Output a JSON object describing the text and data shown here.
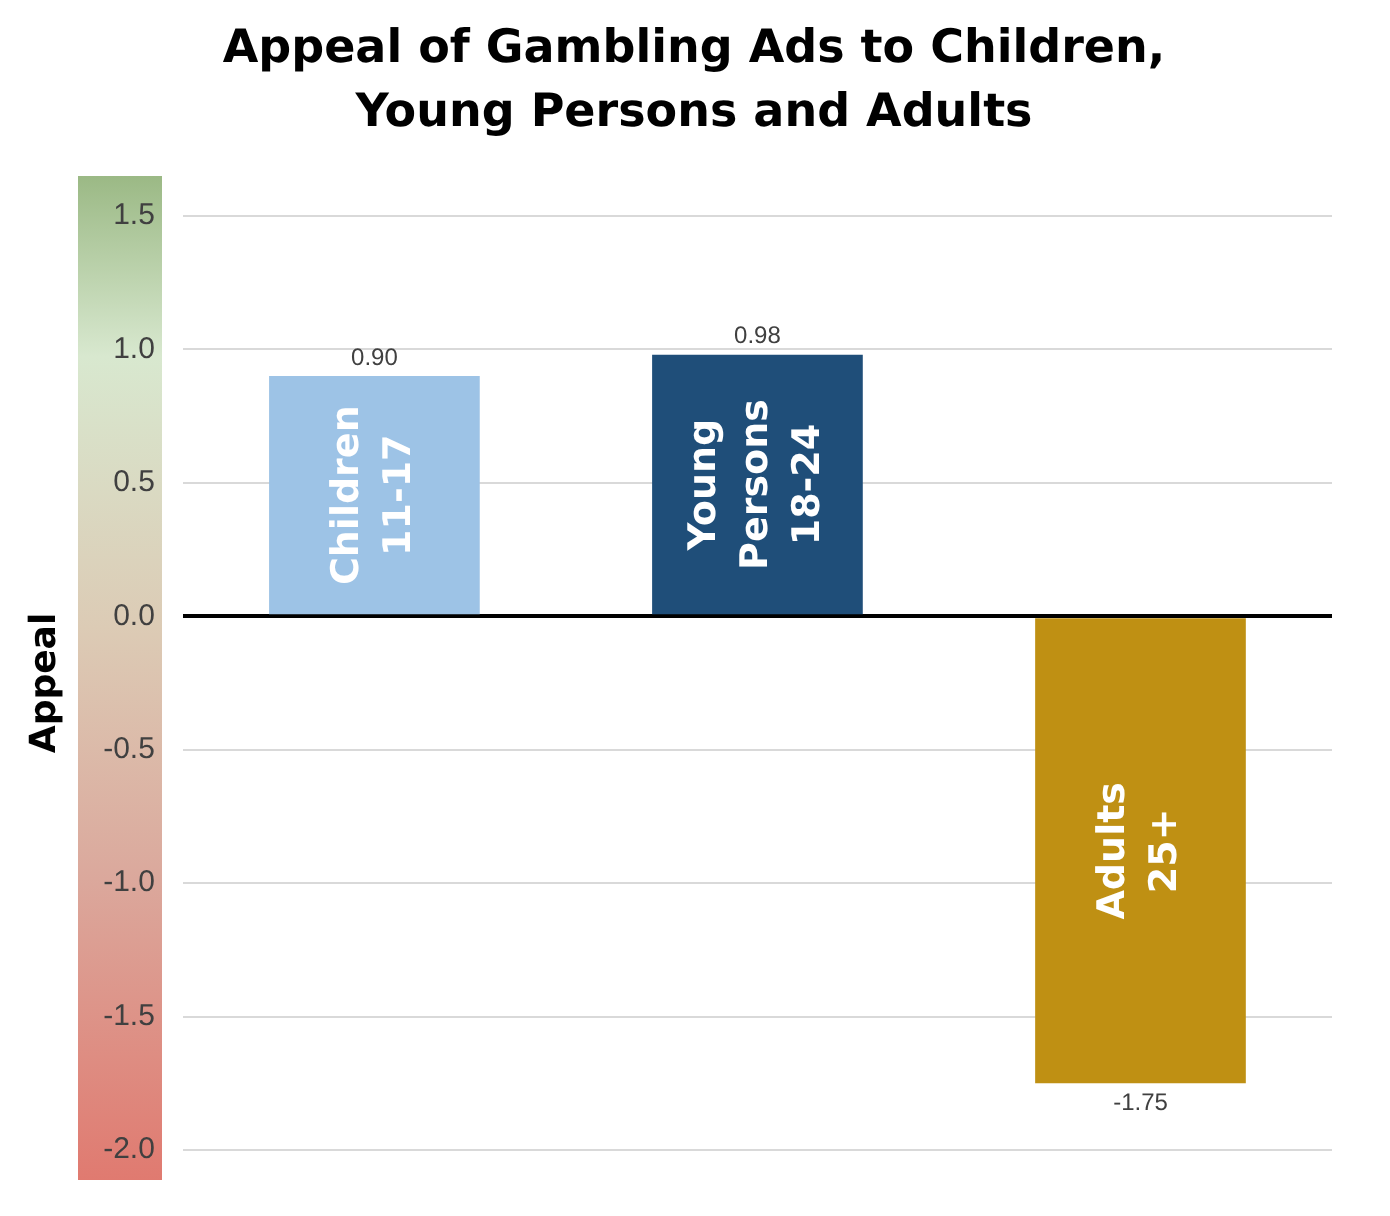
{
  "chart_data": {
    "type": "bar",
    "title": "Appeal of Gambling Ads to Children, Young Persons and Adults",
    "ylabel": "Appeal",
    "categories": [
      "Children 11-17",
      "Young Persons 18-24",
      "Adults 25+"
    ],
    "values": [
      0.9,
      0.98,
      -1.75
    ],
    "colors": [
      "#9dc3e6",
      "#1f4e79",
      "#bf9013"
    ],
    "value_labels": [
      "0.90",
      "0.98",
      "-1.75"
    ],
    "ylim": [
      -2,
      1.5
    ],
    "yticks": [
      {
        "value": -2,
        "label": "-2.0"
      },
      {
        "value": -1.5,
        "label": "-1.5"
      },
      {
        "value": -1,
        "label": "-1.0"
      },
      {
        "value": -0.5,
        "label": "-0.5"
      },
      {
        "value": 0,
        "label": "0.0"
      },
      {
        "value": 0.5,
        "label": "0.5"
      },
      {
        "value": 1,
        "label": "1.0"
      },
      {
        "value": 1.5,
        "label": "1.5"
      }
    ],
    "grid": "y",
    "tick_labels": "y"
  }
}
